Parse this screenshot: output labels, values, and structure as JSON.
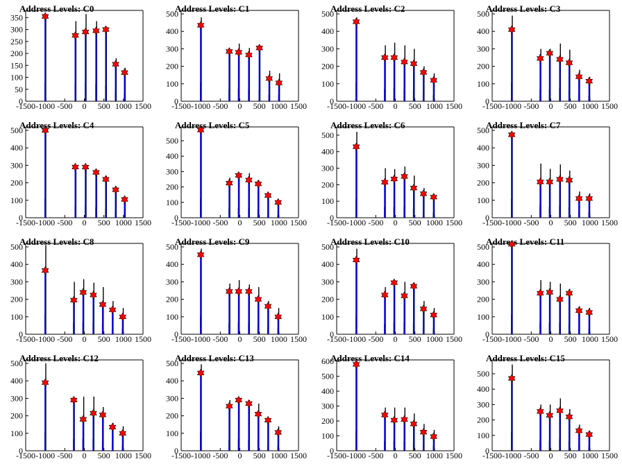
{
  "colors": {
    "background": "#ffffff",
    "series_blue": "#0000dd",
    "series_black": "#000000",
    "marker": "#ff0000"
  },
  "chart_data": [
    {
      "type": "bar",
      "title": "Address Levels: C0",
      "xlim": [
        -1500,
        1500
      ],
      "x_ticks": [
        "-1500",
        "-1000",
        "-500",
        "0",
        "500",
        "1000",
        "1500"
      ],
      "ylim": [
        0,
        380
      ],
      "y_ticks": [
        "0",
        "50",
        "100",
        "150",
        "200",
        "250",
        "300",
        "350"
      ],
      "blue_x": [
        -1000,
        -230,
        30,
        300,
        550,
        800,
        1030
      ],
      "blue_values": [
        355,
        270,
        285,
        290,
        295,
        155,
        115
      ],
      "black_values": [
        350,
        335,
        365,
        335,
        300,
        180,
        140
      ],
      "markers": [
        355,
        275,
        290,
        295,
        300,
        155,
        120
      ]
    },
    {
      "type": "bar",
      "title": "Address Levels: C1",
      "xlim": [
        -1500,
        1500
      ],
      "x_ticks": [
        "-1500",
        "-1000",
        "-500",
        "0",
        "500",
        "1000",
        "1500"
      ],
      "ylim": [
        0,
        520
      ],
      "y_ticks": [
        "0",
        "100",
        "200",
        "300",
        "400",
        "500"
      ],
      "blue_x": [
        -1000,
        -270,
        -30,
        230,
        500,
        750,
        1000
      ],
      "blue_values": [
        430,
        280,
        275,
        260,
        300,
        125,
        100
      ],
      "black_values": [
        480,
        300,
        330,
        305,
        300,
        175,
        160
      ],
      "markers": [
        435,
        285,
        280,
        265,
        305,
        130,
        105
      ]
    },
    {
      "type": "bar",
      "title": "Address Levels: C2",
      "xlim": [
        -1500,
        1500
      ],
      "x_ticks": [
        "-1500",
        "-1000",
        "-500",
        "0",
        "500",
        "1000",
        "1500"
      ],
      "ylim": [
        0,
        520
      ],
      "y_ticks": [
        "0",
        "100",
        "200",
        "300",
        "400",
        "500"
      ],
      "blue_x": [
        -1000,
        -270,
        -30,
        230,
        470,
        720,
        980
      ],
      "blue_values": [
        460,
        245,
        250,
        220,
        215,
        160,
        120
      ],
      "black_values": [
        480,
        320,
        335,
        320,
        300,
        200,
        160
      ],
      "markers": [
        455,
        250,
        250,
        225,
        215,
        165,
        120
      ]
    },
    {
      "type": "bar",
      "title": "Address Levels: C3",
      "xlim": [
        -1500,
        1500
      ],
      "x_ticks": [
        "-1500",
        "-1000",
        "-500",
        "0",
        "500",
        "1000",
        "1500"
      ],
      "ylim": [
        0,
        520
      ],
      "y_ticks": [
        "0",
        "100",
        "200",
        "300",
        "400",
        "500"
      ],
      "blue_x": [
        -1000,
        -270,
        -30,
        230,
        470,
        720,
        980
      ],
      "blue_values": [
        410,
        270,
        275,
        230,
        210,
        140,
        110
      ],
      "black_values": [
        490,
        300,
        300,
        330,
        295,
        180,
        140
      ],
      "markers": [
        410,
        245,
        275,
        240,
        220,
        140,
        115
      ]
    },
    {
      "type": "bar",
      "title": "Address Levels: C4",
      "xlim": [
        -1500,
        1500
      ],
      "x_ticks": [
        "-1500",
        "-1000",
        "-500",
        "0",
        "500",
        "1000",
        "1500"
      ],
      "ylim": [
        0,
        520
      ],
      "y_ticks": [
        "0",
        "100",
        "200",
        "300",
        "400",
        "500"
      ],
      "blue_x": [
        -1000,
        -230,
        30,
        300,
        550,
        800,
        1030
      ],
      "blue_values": [
        500,
        290,
        290,
        260,
        215,
        160,
        105
      ],
      "black_values": [
        500,
        300,
        300,
        270,
        240,
        180,
        120
      ],
      "markers": [
        500,
        290,
        290,
        260,
        220,
        160,
        105
      ]
    },
    {
      "type": "bar",
      "title": "Address Levels: C5",
      "xlim": [
        -1500,
        1500
      ],
      "x_ticks": [
        "-1500",
        "-1000",
        "-500",
        "0",
        "500",
        "1000",
        "1500"
      ],
      "ylim": [
        0,
        590
      ],
      "y_ticks": [
        "0",
        "100",
        "200",
        "300",
        "400",
        "500"
      ],
      "blue_x": [
        -1000,
        -270,
        -30,
        230,
        470,
        720,
        980
      ],
      "blue_values": [
        570,
        230,
        270,
        240,
        225,
        145,
        100
      ],
      "black_values": [
        580,
        260,
        285,
        290,
        245,
        155,
        110
      ],
      "markers": [
        570,
        225,
        275,
        245,
        220,
        145,
        100
      ]
    },
    {
      "type": "bar",
      "title": "Address Levels: C6",
      "xlim": [
        -1500,
        1500
      ],
      "x_ticks": [
        "-1500",
        "-1000",
        "-500",
        "0",
        "500",
        "1000",
        "1500"
      ],
      "ylim": [
        0,
        550
      ],
      "y_ticks": [
        "0",
        "100",
        "200",
        "300",
        "400",
        "500"
      ],
      "blue_x": [
        -1000,
        -270,
        -30,
        230,
        470,
        720,
        980
      ],
      "blue_values": [
        430,
        215,
        230,
        250,
        180,
        140,
        125
      ],
      "black_values": [
        520,
        300,
        295,
        310,
        255,
        180,
        140
      ],
      "markers": [
        430,
        215,
        235,
        250,
        180,
        145,
        125
      ]
    },
    {
      "type": "bar",
      "title": "Address Levels: C7",
      "xlim": [
        -1500,
        1500
      ],
      "x_ticks": [
        "-1500",
        "-1000",
        "-500",
        "0",
        "500",
        "1000",
        "1500"
      ],
      "ylim": [
        0,
        520
      ],
      "y_ticks": [
        "0",
        "100",
        "200",
        "300",
        "400",
        "500"
      ],
      "blue_x": [
        -1000,
        -270,
        -30,
        230,
        470,
        720,
        980
      ],
      "blue_values": [
        475,
        200,
        200,
        220,
        215,
        110,
        115
      ],
      "black_values": [
        490,
        310,
        280,
        305,
        270,
        150,
        140
      ],
      "markers": [
        475,
        205,
        205,
        220,
        215,
        110,
        110
      ]
    },
    {
      "type": "bar",
      "title": "Address Levels: C8",
      "xlim": [
        -1500,
        1500
      ],
      "x_ticks": [
        "-1500",
        "-1000",
        "-500",
        "0",
        "500",
        "1000",
        "1500"
      ],
      "ylim": [
        0,
        520
      ],
      "y_ticks": [
        "0",
        "100",
        "200",
        "300",
        "400",
        "500"
      ],
      "blue_x": [
        -1000,
        -270,
        -30,
        230,
        470,
        720,
        980
      ],
      "blue_values": [
        365,
        200,
        240,
        225,
        170,
        140,
        100
      ],
      "black_values": [
        510,
        300,
        315,
        295,
        270,
        190,
        150
      ],
      "markers": [
        365,
        195,
        240,
        225,
        170,
        140,
        100
      ]
    },
    {
      "type": "bar",
      "title": "Address Levels: C9",
      "xlim": [
        -1500,
        1500
      ],
      "x_ticks": [
        "-1500",
        "-1000",
        "-500",
        "0",
        "500",
        "1000",
        "1500"
      ],
      "ylim": [
        0,
        520
      ],
      "y_ticks": [
        "0",
        "100",
        "200",
        "300",
        "400",
        "500"
      ],
      "blue_x": [
        -1000,
        -270,
        -30,
        230,
        470,
        720,
        980
      ],
      "blue_values": [
        450,
        240,
        240,
        240,
        200,
        160,
        100
      ],
      "black_values": [
        490,
        290,
        310,
        285,
        270,
        190,
        150
      ],
      "markers": [
        455,
        245,
        245,
        245,
        200,
        160,
        100
      ]
    },
    {
      "type": "bar",
      "title": "Address Levels: C10",
      "xlim": [
        -1500,
        1500
      ],
      "x_ticks": [
        "-1500",
        "-1000",
        "-500",
        "0",
        "500",
        "1000",
        "1500"
      ],
      "ylim": [
        0,
        520
      ],
      "y_ticks": [
        "0",
        "100",
        "200",
        "300",
        "400",
        "500"
      ],
      "blue_x": [
        -1000,
        -270,
        -30,
        230,
        470,
        720,
        980
      ],
      "blue_values": [
        430,
        225,
        295,
        215,
        275,
        145,
        110
      ],
      "black_values": [
        490,
        270,
        310,
        300,
        295,
        190,
        150
      ],
      "markers": [
        425,
        225,
        295,
        220,
        275,
        145,
        110
      ]
    },
    {
      "type": "bar",
      "title": "Address Levels: C11",
      "xlim": [
        -1500,
        1500
      ],
      "x_ticks": [
        "-1500",
        "-1000",
        "-500",
        "0",
        "500",
        "1000",
        "1500"
      ],
      "ylim": [
        0,
        520
      ],
      "y_ticks": [
        "0",
        "100",
        "200",
        "300",
        "400",
        "500"
      ],
      "blue_x": [
        -1000,
        -270,
        -30,
        230,
        470,
        720,
        980
      ],
      "blue_values": [
        510,
        230,
        235,
        200,
        225,
        130,
        125
      ],
      "black_values": [
        520,
        310,
        300,
        290,
        260,
        160,
        150
      ],
      "markers": [
        515,
        235,
        240,
        200,
        235,
        135,
        125
      ]
    },
    {
      "type": "bar",
      "title": "Address Levels: C12",
      "xlim": [
        -1500,
        1500
      ],
      "x_ticks": [
        "-1500",
        "-1000",
        "-500",
        "0",
        "500",
        "1000",
        "1500"
      ],
      "ylim": [
        0,
        520
      ],
      "y_ticks": [
        "0",
        "100",
        "200",
        "300",
        "400",
        "500"
      ],
      "blue_x": [
        -1000,
        -270,
        -30,
        230,
        470,
        720,
        980
      ],
      "blue_values": [
        385,
        290,
        175,
        220,
        205,
        130,
        100
      ],
      "black_values": [
        500,
        300,
        310,
        310,
        250,
        160,
        140
      ],
      "markers": [
        390,
        290,
        180,
        215,
        205,
        135,
        100
      ]
    },
    {
      "type": "bar",
      "title": "Address Levels: C13",
      "xlim": [
        -1500,
        1500
      ],
      "x_ticks": [
        "-1500",
        "-1000",
        "-500",
        "0",
        "500",
        "1000",
        "1500"
      ],
      "ylim": [
        0,
        520
      ],
      "y_ticks": [
        "0",
        "100",
        "200",
        "300",
        "400",
        "500"
      ],
      "blue_x": [
        -1000,
        -270,
        -30,
        230,
        470,
        720,
        980
      ],
      "blue_values": [
        440,
        250,
        290,
        270,
        210,
        170,
        100
      ],
      "black_values": [
        495,
        290,
        300,
        290,
        270,
        180,
        140
      ],
      "markers": [
        445,
        255,
        290,
        270,
        210,
        175,
        105
      ]
    },
    {
      "type": "bar",
      "title": "Address Levels: C14",
      "xlim": [
        -1500,
        1500
      ],
      "x_ticks": [
        "-1500",
        "-1000",
        "-500",
        "0",
        "500",
        "1000",
        "1500"
      ],
      "ylim": [
        0,
        610
      ],
      "y_ticks": [
        "0",
        "100",
        "200",
        "300",
        "400",
        "500",
        "600"
      ],
      "blue_x": [
        -1000,
        -270,
        -30,
        230,
        470,
        720,
        980
      ],
      "blue_values": [
        580,
        235,
        200,
        205,
        175,
        125,
        95
      ],
      "black_values": [
        600,
        290,
        290,
        290,
        250,
        180,
        140
      ],
      "markers": [
        580,
        240,
        205,
        210,
        180,
        125,
        95
      ]
    },
    {
      "type": "bar",
      "title": "Address Levels: C15",
      "xlim": [
        -1500,
        1500
      ],
      "x_ticks": [
        "-1500",
        "-1000",
        "-500",
        "0",
        "500",
        "1000",
        "1500"
      ],
      "ylim": [
        0,
        590
      ],
      "y_ticks": [
        "0",
        "100",
        "200",
        "300",
        "400",
        "500"
      ],
      "blue_x": [
        -1000,
        -270,
        -30,
        230,
        470,
        720,
        980
      ],
      "blue_values": [
        470,
        260,
        225,
        250,
        220,
        135,
        100
      ],
      "black_values": [
        560,
        300,
        300,
        340,
        270,
        170,
        130
      ],
      "markers": [
        470,
        255,
        230,
        260,
        220,
        130,
        105
      ]
    }
  ]
}
